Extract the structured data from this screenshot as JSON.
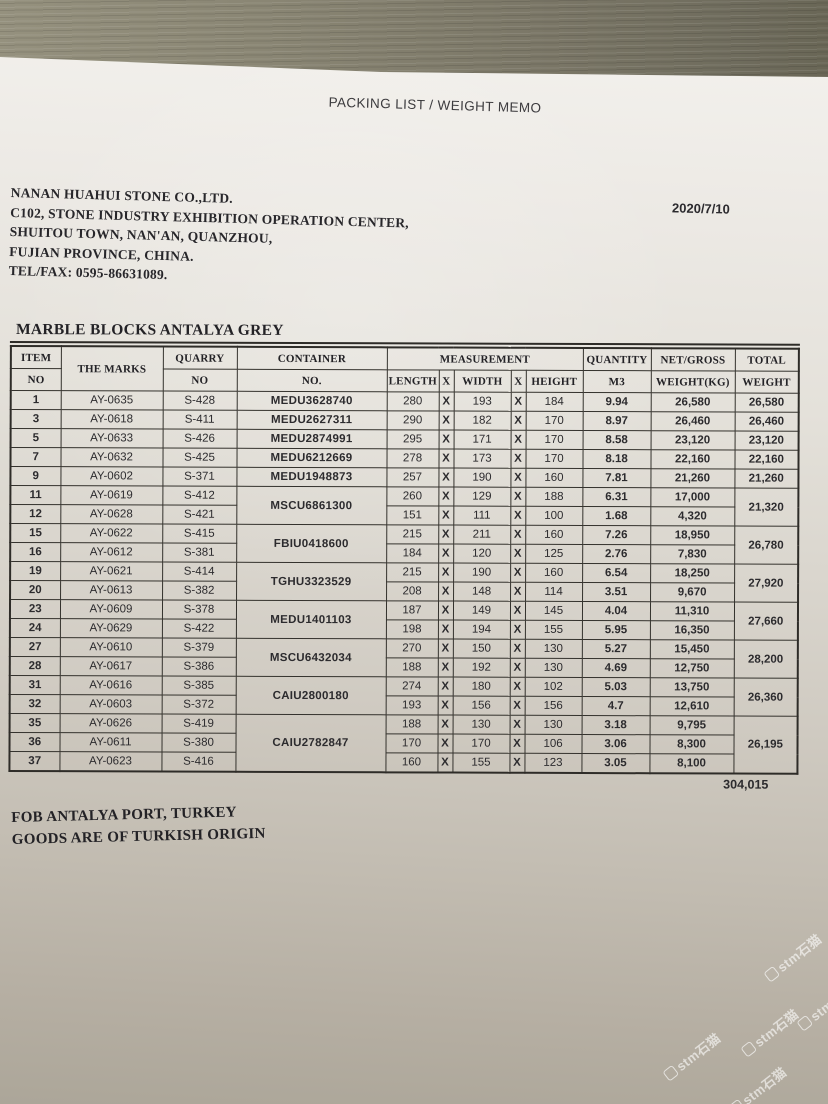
{
  "document": {
    "title": "PACKING LIST / WEIGHT MEMO",
    "date": "2020/7/10",
    "company_lines": [
      "NANAN HUAHUI STONE CO.,LTD.",
      "C102, STONE INDUSTRY EXHIBITION OPERATION CENTER,",
      "SHUITOU TOWN, NAN'AN, QUANZHOU,",
      "FUJIAN PROVINCE, CHINA.",
      "TEL/FAX: 0595-86631089."
    ],
    "section_title": "MARBLE BLOCKS ANTALYA GREY",
    "footer_lines": [
      "FOB ANTALYA PORT, TURKEY",
      "GOODS ARE OF TURKISH ORIGIN"
    ],
    "watermark_text": "stm石猫"
  },
  "colors": {
    "ink": "#2c2b2e",
    "paper": "#e8e5df",
    "desk_wood": "#83806e",
    "watermark": "#ffffff"
  },
  "table": {
    "header": {
      "item_top": "ITEM",
      "item_bottom": "NO",
      "marks": "THE MARKS",
      "quarry_top": "QUARRY",
      "quarry_bottom": "NO",
      "container_top": "CONTAINER",
      "container_bottom": "NO.",
      "measurement": "MEASUREMENT",
      "length": "LENGTH",
      "x1": "X",
      "width": "WIDTH",
      "x2": "X",
      "height": "HEIGHT",
      "quantity_top": "QUANTITY",
      "quantity_bottom": "M3",
      "weight_top": "NET/GROSS",
      "weight_bottom": "WEIGHT(KG)",
      "total_top": "TOTAL",
      "total_bottom": "WEIGHT"
    },
    "x_separator": "X",
    "groups": [
      {
        "container": "MEDU3628740",
        "total": "26,580",
        "rows": [
          {
            "no": "1",
            "mark": "AY-0635",
            "quarry": "S-428",
            "length": "280",
            "width": "193",
            "height": "184",
            "m3": "9.94",
            "weight": "26,580"
          }
        ]
      },
      {
        "container": "MEDU2627311",
        "total": "26,460",
        "rows": [
          {
            "no": "3",
            "mark": "AY-0618",
            "quarry": "S-411",
            "length": "290",
            "width": "182",
            "height": "170",
            "m3": "8.97",
            "weight": "26,460"
          }
        ]
      },
      {
        "container": "MEDU2874991",
        "total": "23,120",
        "rows": [
          {
            "no": "5",
            "mark": "AY-0633",
            "quarry": "S-426",
            "length": "295",
            "width": "171",
            "height": "170",
            "m3": "8.58",
            "weight": "23,120"
          }
        ]
      },
      {
        "container": "MEDU6212669",
        "total": "22,160",
        "rows": [
          {
            "no": "7",
            "mark": "AY-0632",
            "quarry": "S-425",
            "length": "278",
            "width": "173",
            "height": "170",
            "m3": "8.18",
            "weight": "22,160"
          }
        ]
      },
      {
        "container": "MEDU1948873",
        "total": "21,260",
        "rows": [
          {
            "no": "9",
            "mark": "AY-0602",
            "quarry": "S-371",
            "length": "257",
            "width": "190",
            "height": "160",
            "m3": "7.81",
            "weight": "21,260"
          }
        ]
      },
      {
        "container": "MSCU6861300",
        "total": "21,320",
        "rows": [
          {
            "no": "11",
            "mark": "AY-0619",
            "quarry": "S-412",
            "length": "260",
            "width": "129",
            "height": "188",
            "m3": "6.31",
            "weight": "17,000"
          },
          {
            "no": "12",
            "mark": "AY-0628",
            "quarry": "S-421",
            "length": "151",
            "width": "111",
            "height": "100",
            "m3": "1.68",
            "weight": "4,320"
          }
        ]
      },
      {
        "container": "FBIU0418600",
        "total": "26,780",
        "rows": [
          {
            "no": "15",
            "mark": "AY-0622",
            "quarry": "S-415",
            "length": "215",
            "width": "211",
            "height": "160",
            "m3": "7.26",
            "weight": "18,950"
          },
          {
            "no": "16",
            "mark": "AY-0612",
            "quarry": "S-381",
            "length": "184",
            "width": "120",
            "height": "125",
            "m3": "2.76",
            "weight": "7,830"
          }
        ]
      },
      {
        "container": "TGHU3323529",
        "total": "27,920",
        "rows": [
          {
            "no": "19",
            "mark": "AY-0621",
            "quarry": "S-414",
            "length": "215",
            "width": "190",
            "height": "160",
            "m3": "6.54",
            "weight": "18,250"
          },
          {
            "no": "20",
            "mark": "AY-0613",
            "quarry": "S-382",
            "length": "208",
            "width": "148",
            "height": "114",
            "m3": "3.51",
            "weight": "9,670"
          }
        ]
      },
      {
        "container": "MEDU1401103",
        "total": "27,660",
        "rows": [
          {
            "no": "23",
            "mark": "AY-0609",
            "quarry": "S-378",
            "length": "187",
            "width": "149",
            "height": "145",
            "m3": "4.04",
            "weight": "11,310"
          },
          {
            "no": "24",
            "mark": "AY-0629",
            "quarry": "S-422",
            "length": "198",
            "width": "194",
            "height": "155",
            "m3": "5.95",
            "weight": "16,350"
          }
        ]
      },
      {
        "container": "MSCU6432034",
        "total": "28,200",
        "rows": [
          {
            "no": "27",
            "mark": "AY-0610",
            "quarry": "S-379",
            "length": "270",
            "width": "150",
            "height": "130",
            "m3": "5.27",
            "weight": "15,450"
          },
          {
            "no": "28",
            "mark": "AY-0617",
            "quarry": "S-386",
            "length": "188",
            "width": "192",
            "height": "130",
            "m3": "4.69",
            "weight": "12,750"
          }
        ]
      },
      {
        "container": "CAIU2800180",
        "total": "26,360",
        "rows": [
          {
            "no": "31",
            "mark": "AY-0616",
            "quarry": "S-385",
            "length": "274",
            "width": "180",
            "height": "102",
            "m3": "5.03",
            "weight": "13,750"
          },
          {
            "no": "32",
            "mark": "AY-0603",
            "quarry": "S-372",
            "length": "193",
            "width": "156",
            "height": "156",
            "m3": "4.7",
            "weight": "12,610"
          }
        ]
      },
      {
        "container": "CAIU2782847",
        "total": "26,195",
        "rows": [
          {
            "no": "35",
            "mark": "AY-0626",
            "quarry": "S-419",
            "length": "188",
            "width": "130",
            "height": "130",
            "m3": "3.18",
            "weight": "9,795"
          },
          {
            "no": "36",
            "mark": "AY-0611",
            "quarry": "S-380",
            "length": "170",
            "width": "170",
            "height": "106",
            "m3": "3.06",
            "weight": "8,300"
          },
          {
            "no": "37",
            "mark": "AY-0623",
            "quarry": "S-416",
            "length": "160",
            "width": "155",
            "height": "123",
            "m3": "3.05",
            "weight": "8,100"
          }
        ]
      }
    ],
    "grand_total": "304,015"
  }
}
